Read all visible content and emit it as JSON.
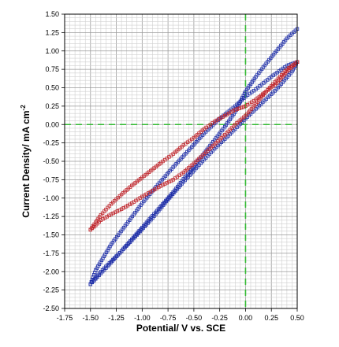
{
  "chart_data": {
    "type": "scatter",
    "title": "",
    "xlabel": "Potential/ V vs. SCE",
    "ylabel": "Current Density/ mA cm",
    "ylabel_sup": "-2",
    "xlim": [
      -1.75,
      0.5
    ],
    "ylim": [
      -2.5,
      1.5
    ],
    "x_ticks": [
      "-1.75",
      "-1.50",
      "-1.25",
      "-1.00",
      "-0.75",
      "-0.50",
      "-0.25",
      "0.00",
      "0.25",
      "0.50"
    ],
    "y_ticks": [
      "-2.50",
      "-2.25",
      "-2.00",
      "-1.75",
      "-1.50",
      "-1.25",
      "-1.00",
      "-0.75",
      "-0.50",
      "-0.25",
      "0.00",
      "0.25",
      "0.50",
      "0.75",
      "1.00",
      "1.25",
      "1.50"
    ],
    "grid": true,
    "reference_lines": {
      "x": 0.0,
      "y": 0.0,
      "color": "#33bb33",
      "style": "dashed"
    },
    "series": [
      {
        "color": "#1f2fa8",
        "marker": "open-square",
        "x": [
          -1.5,
          -1.35,
          -1.2,
          -1.05,
          -0.9,
          -0.75,
          -0.6,
          -0.45,
          -0.3,
          -0.15,
          0.0,
          0.15,
          0.3,
          0.45,
          0.5,
          0.4,
          0.25,
          0.1,
          0.0,
          -0.1,
          -0.25,
          -0.4,
          -0.55,
          -0.7,
          -0.85,
          -1.0,
          -1.15,
          -1.3,
          -1.45,
          -1.5
        ],
        "y": [
          -2.17,
          -1.95,
          -1.72,
          -1.5,
          -1.27,
          -1.02,
          -0.78,
          -0.55,
          -0.33,
          -0.13,
          0.08,
          0.28,
          0.48,
          0.72,
          0.85,
          0.8,
          0.65,
          0.48,
          0.38,
          0.25,
          0.08,
          -0.12,
          -0.35,
          -0.58,
          -0.82,
          -1.07,
          -1.35,
          -1.63,
          -1.98,
          -2.17
        ]
      },
      {
        "color": "#1f2fa8",
        "marker": "open-square",
        "x": [
          -1.5,
          -1.4,
          -1.3,
          -1.2,
          -1.1,
          -1.0,
          -0.9,
          -0.8,
          -0.7,
          -0.6,
          -0.5,
          -0.4,
          -0.3,
          -0.2,
          -0.1,
          0.0,
          0.1,
          0.2,
          0.3,
          0.4,
          0.5
        ],
        "y": [
          -2.17,
          -2.0,
          -1.86,
          -1.72,
          -1.56,
          -1.4,
          -1.24,
          -1.08,
          -0.92,
          -0.74,
          -0.57,
          -0.39,
          -0.21,
          -0.03,
          0.17,
          0.45,
          0.65,
          0.83,
          1.0,
          1.17,
          1.3
        ]
      },
      {
        "color": "#c0282e",
        "marker": "open-square",
        "x": [
          -1.5,
          -1.45,
          -1.4,
          -1.3,
          -1.2,
          -1.1,
          -1.0,
          -0.9,
          -0.8,
          -0.7,
          -0.6,
          -0.5,
          -0.4,
          -0.3,
          -0.2,
          -0.1,
          0.0,
          0.1,
          0.2,
          0.3,
          0.4,
          0.5
        ],
        "y": [
          -1.43,
          -1.37,
          -1.3,
          -1.22,
          -1.15,
          -1.07,
          -0.98,
          -0.9,
          -0.82,
          -0.75,
          -0.65,
          -0.53,
          -0.4,
          -0.27,
          -0.14,
          0.0,
          0.12,
          0.28,
          0.45,
          0.6,
          0.75,
          0.85
        ]
      },
      {
        "color": "#c0282e",
        "marker": "open-square",
        "x": [
          0.5,
          0.4,
          0.3,
          0.2,
          0.1,
          0.0,
          -0.1,
          -0.2,
          -0.3,
          -0.4,
          -0.5,
          -0.6,
          -0.7,
          -0.8,
          -0.9,
          -1.0,
          -1.1,
          -1.2,
          -1.3,
          -1.4,
          -1.5
        ],
        "y": [
          0.85,
          0.72,
          0.56,
          0.45,
          0.34,
          0.25,
          0.2,
          0.12,
          0.04,
          -0.06,
          -0.18,
          -0.28,
          -0.4,
          -0.5,
          -0.61,
          -0.72,
          -0.83,
          -0.95,
          -1.08,
          -1.23,
          -1.43
        ]
      }
    ]
  }
}
